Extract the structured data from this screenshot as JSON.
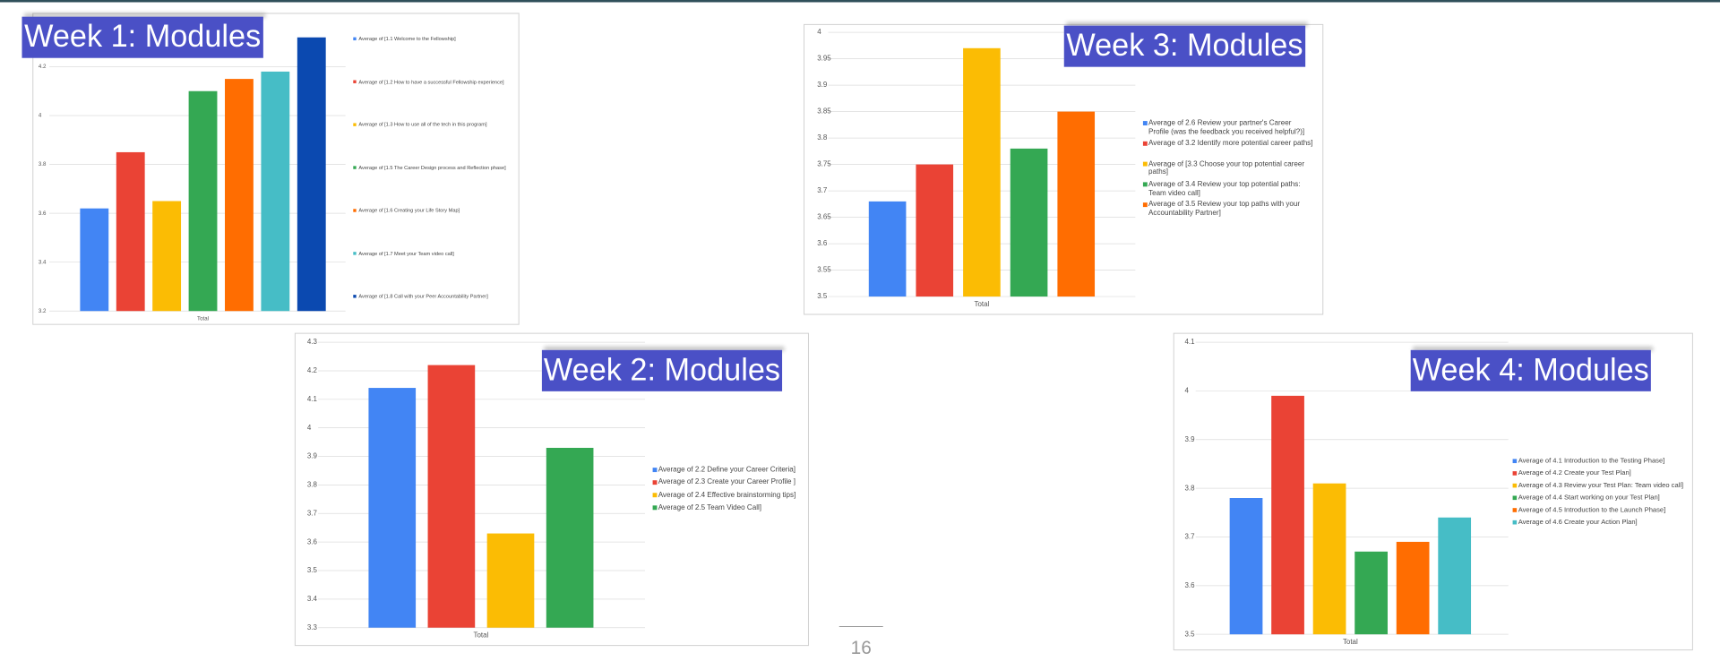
{
  "chart_data": [
    {
      "type": "bar",
      "title": "Week 1: Modules",
      "categories": [
        "Total"
      ],
      "series": [
        {
          "name": "Average of [1.1 Welcome to the Fellowship]",
          "color": "#4285f4",
          "values": [
            3.62
          ]
        },
        {
          "name": "Average of [1.2 How to have a successful Fellowship experience]",
          "color": "#ea4335",
          "values": [
            3.85
          ]
        },
        {
          "name": "Average of [1.3 How to use all of the tech in this program]",
          "color": "#fbbc04",
          "values": [
            3.65
          ]
        },
        {
          "name": "Average of [1.5 The Career Design process and Reflection phase]",
          "color": "#34a853",
          "values": [
            4.1
          ]
        },
        {
          "name": "Average of [1.6 Creating your Life Story Map]",
          "color": "#ff6d01",
          "values": [
            4.15
          ]
        },
        {
          "name": "Average of [1.7 Meet your Team video call]",
          "color": "#46bdc6",
          "values": [
            4.18
          ]
        },
        {
          "name": "Average of [1.8 Call with your Peer Accountability Partner]",
          "color": "#0b49b0",
          "values": [
            4.32
          ]
        }
      ],
      "ylim": [
        3.2,
        4.4
      ],
      "yticks": [
        3.2,
        3.4,
        3.6,
        3.8,
        4,
        4.2
      ],
      "grid": true,
      "legend": "right"
    },
    {
      "type": "bar",
      "title": "Week 3: Modules",
      "categories": [
        "Total"
      ],
      "series": [
        {
          "name": "Average of 2.6 Review your partner's Career Profile (was the feedback you received helpful?)]",
          "color": "#4285f4",
          "values": [
            3.68
          ]
        },
        {
          "name": "Average of 3.2 Identify more potential career paths]",
          "color": "#ea4335",
          "values": [
            3.75
          ]
        },
        {
          "name": "Average of [3.3 Choose your top potential career paths]",
          "color": "#fbbc04",
          "values": [
            3.97
          ]
        },
        {
          "name": "Average of 3.4 Review your top potential paths: Team video call]",
          "color": "#34a853",
          "values": [
            3.78
          ]
        },
        {
          "name": "Average of 3.5 Review your top paths with your Accountability Partner]",
          "color": "#ff6d01",
          "values": [
            3.85
          ]
        }
      ],
      "ylim": [
        3.5,
        4
      ],
      "yticks": [
        3.5,
        3.55,
        3.6,
        3.65,
        3.7,
        3.75,
        3.8,
        3.85,
        3.9,
        3.95,
        4
      ],
      "grid": true,
      "legend": "right"
    },
    {
      "type": "bar",
      "title": "Week 2: Modules",
      "categories": [
        "Total"
      ],
      "series": [
        {
          "name": "Average of 2.2 Define your Career Criteria]",
          "color": "#4285f4",
          "values": [
            4.14
          ]
        },
        {
          "name": "Average of 2.3 Create your Career Profile ]",
          "color": "#ea4335",
          "values": [
            4.22
          ]
        },
        {
          "name": "Average of 2.4 Effective brainstorming tips]",
          "color": "#fbbc04",
          "values": [
            3.63
          ]
        },
        {
          "name": "Average of 2.5 Team Video Call]",
          "color": "#34a853",
          "values": [
            3.93
          ]
        }
      ],
      "ylim": [
        3.3,
        4.3
      ],
      "yticks": [
        3.3,
        3.4,
        3.5,
        3.6,
        3.7,
        3.8,
        3.9,
        4,
        4.1,
        4.2,
        4.3
      ],
      "grid": true,
      "legend": "right"
    },
    {
      "type": "bar",
      "title": "Week 4: Modules",
      "categories": [
        "Total"
      ],
      "series": [
        {
          "name": "Average of 4.1 Introduction to the Testing Phase]",
          "color": "#4285f4",
          "values": [
            3.78
          ]
        },
        {
          "name": "Average of 4.2 Create your Test Plan]",
          "color": "#ea4335",
          "values": [
            3.99
          ]
        },
        {
          "name": "Average of 4.3 Review your Test Plan: Team video call]",
          "color": "#fbbc04",
          "values": [
            3.81
          ]
        },
        {
          "name": "Average of 4.4 Start working on your Test Plan]",
          "color": "#34a853",
          "values": [
            3.67
          ]
        },
        {
          "name": "Average of 4.5 Introduction to the Launch Phase]",
          "color": "#ff6d01",
          "values": [
            3.69
          ]
        },
        {
          "name": "Average of 4.6 Create your Action Plan]",
          "color": "#46bdc6",
          "values": [
            3.74
          ]
        }
      ],
      "ylim": [
        3.5,
        4.1
      ],
      "yticks": [
        3.5,
        3.6,
        3.7,
        3.8,
        3.9,
        4,
        4.1
      ],
      "grid": true,
      "legend": "right"
    }
  ],
  "page_number": "16"
}
